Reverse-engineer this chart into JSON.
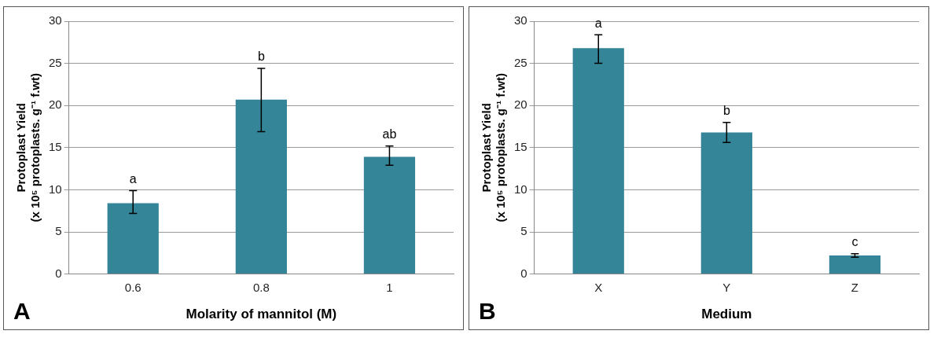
{
  "chart_data": [
    {
      "type": "bar",
      "xlabel": "Molarity of mannitol (M)",
      "ylabel": "Protoplast Yield\n(x 10⁵ protoplasts. g⁻¹ f.wt)",
      "categories": [
        "0.6",
        "0.8",
        "1"
      ],
      "values": [
        8.4,
        20.7,
        13.9
      ],
      "color": "#358599",
      "errors": [
        [
          7.2,
          9.9
        ],
        [
          16.9,
          24.4
        ],
        [
          12.9,
          15.2
        ]
      ],
      "ylim": [
        0,
        30
      ],
      "yticks": [
        0,
        5,
        10,
        15,
        20,
        25,
        30
      ],
      "grid": "y",
      "annotations": [
        "A",
        {
          "text": "a",
          "x": "0.6",
          "y": 9.9
        },
        {
          "text": "b",
          "x": "0.8",
          "y": 24.4
        },
        {
          "text": "ab",
          "x": "1",
          "y": 15.2
        }
      ]
    },
    {
      "type": "bar",
      "xlabel": "Medium",
      "ylabel": "Protoplast Yield\n(x 10⁵ protoplasts. g⁻¹ f.wt)",
      "categories": [
        "X",
        "Y",
        "Z"
      ],
      "values": [
        26.8,
        16.8,
        2.2
      ],
      "color": "#358599",
      "errors": [
        [
          25.0,
          28.4
        ],
        [
          15.6,
          18.0
        ],
        [
          2.0,
          2.4
        ]
      ],
      "ylim": [
        0,
        30
      ],
      "yticks": [
        0,
        5,
        10,
        15,
        20,
        25,
        30
      ],
      "grid": "y",
      "annotations": [
        "B",
        {
          "text": "a",
          "x": "X",
          "y": 28.4
        },
        {
          "text": "b",
          "x": "Y",
          "y": 18.0
        },
        {
          "text": "c",
          "x": "Z",
          "y": 2.4
        }
      ]
    }
  ]
}
